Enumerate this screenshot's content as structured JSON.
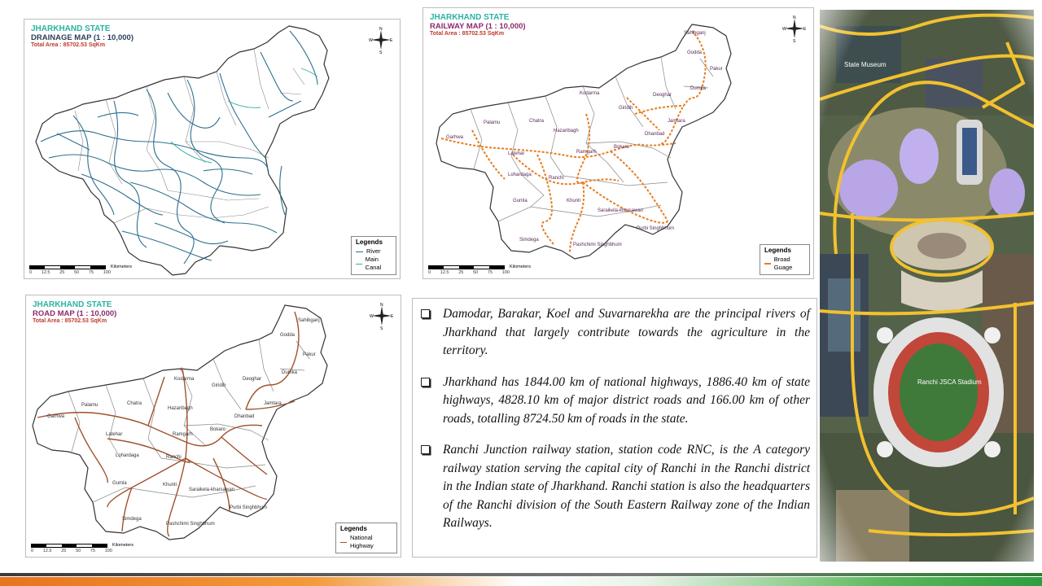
{
  "maps": {
    "drainage": {
      "state_title": "JHARKHAND STATE",
      "map_name": "DRAINAGE MAP (1 : 10,000)",
      "total_area": "Total Area : 85702.53 SqKm",
      "legend_title": "Legends",
      "legend_items": [
        "River",
        "Main Canal"
      ],
      "scale_ticks": [
        "0",
        "12.5",
        "25",
        "50",
        "75",
        "100"
      ],
      "scale_unit": "Kilometers"
    },
    "railway": {
      "state_title": "JHARKHAND STATE",
      "map_name": "RAILWAY MAP (1 : 10,000)",
      "total_area": "Total Area : 85702.53 SqKm",
      "legend_title": "Legends",
      "legend_items": [
        "Broad Guage"
      ],
      "scale_ticks": [
        "0",
        "12.5",
        "25",
        "50",
        "75",
        "100"
      ],
      "scale_unit": "Kilometers",
      "districts": [
        "Sahibganj",
        "Godda",
        "Pakur",
        "Dumka",
        "Deoghar",
        "Kodarma",
        "Giridih",
        "Jamtara",
        "Chatra",
        "Palamu",
        "Hazaribagh",
        "Dhanbad",
        "Bokaro",
        "Garhwa",
        "Latehar",
        "Ramgarh",
        "Lohardaga",
        "Ranchi",
        "Gumla",
        "Khunti",
        "Saraikela-kharsawan",
        "Purbi Singhbhum",
        "Simdega",
        "Pashchimi Singhbhum"
      ]
    },
    "road": {
      "state_title": "JHARKHAND STATE",
      "map_name": "ROAD MAP (1 : 10,000)",
      "total_area": "Total Area : 85702.53 SqKm",
      "legend_title": "Legends",
      "legend_items": [
        "National Highway"
      ],
      "scale_ticks": [
        "0",
        "12.5",
        "25",
        "50",
        "75",
        "100"
      ],
      "scale_unit": "Kilometers",
      "districts": [
        "Sahibganj",
        "Godda",
        "Pakur",
        "Dumka",
        "Deoghar",
        "Kodarma",
        "Giridih",
        "Jamtara",
        "Chatra",
        "Palamu",
        "Hazaribagh",
        "Dhanbad",
        "Bokaro",
        "Garhwa",
        "Latehar",
        "Ramgarh",
        "Lohardaga",
        "Ranchi",
        "Gumla",
        "Khunti",
        "Saraikela-kharsawan",
        "Purbi Singhbhum",
        "Simdega",
        "Pashchimi Singhbhum"
      ]
    }
  },
  "compass": {
    "n": "N",
    "s": "S",
    "e": "E",
    "w": "W"
  },
  "bullets": [
    "Damodar, Barakar, Koel and Suvarnarekha are the principal rivers of Jharkhand that largely contribute towards the agriculture in the territory.",
    "Jharkhand has 1844.00 km of national highways, 1886.40 km of state highways, 4828.10 km of major district roads and 166.00 km of other roads, totalling 8724.50 km of roads in the state.",
    "Ranchi Junction railway station, station code RNC, is the A category railway station serving the capital city of Ranchi in the Ranchi district in the Indian state of Jharkhand. Ranchi station is also the headquarters of the Ranchi division of the South Eastern Railway zone of the Indian Railways."
  ],
  "photo": {
    "labels": [
      "State Museum",
      "Ranchi JSCA Stadium"
    ]
  },
  "colors": {
    "river": "#2e6f8e",
    "canal": "#2bb3a3",
    "rail": "#e67e22",
    "road": "#a0522d",
    "boundary": "#555555",
    "highway_photo": "#f2c12e"
  }
}
